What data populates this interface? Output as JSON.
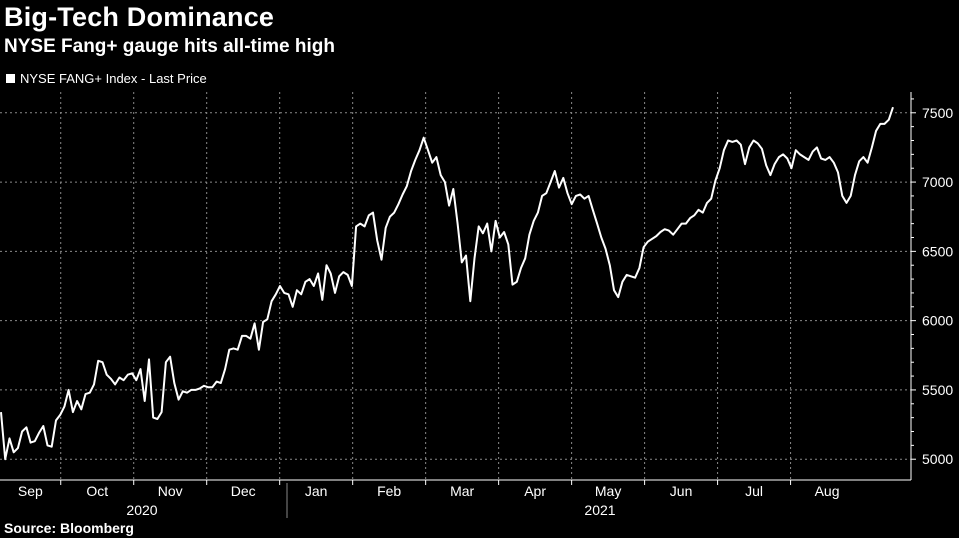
{
  "header": {
    "title": "Big-Tech Dominance",
    "subtitle": "NYSE Fang+ gauge hits all-time high"
  },
  "legend": {
    "label": "NYSE FANG+ Index - Last Price"
  },
  "footer": {
    "source": "Source: Bloomberg"
  },
  "colors": {
    "background": "#000000",
    "line": "#ffffff",
    "grid": "#8a8a8a"
  },
  "chart_data": {
    "type": "line",
    "title": "Big-Tech Dominance",
    "subtitle": "NYSE Fang+ gauge hits all-time high",
    "xlabel": "",
    "ylabel": "",
    "ylim": [
      4850,
      7650
    ],
    "y_ticks": [
      5000,
      5500,
      6000,
      6500,
      7000,
      7500
    ],
    "y_tick_labels": [
      "5000",
      "5500",
      "6000",
      "6500",
      "7000",
      "7500"
    ],
    "x_tick_labels": [
      "Sep",
      "Oct",
      "Nov",
      "Dec",
      "Jan",
      "Feb",
      "Mar",
      "Apr",
      "May",
      "Jun",
      "Jul",
      "Aug"
    ],
    "year_labels": [
      "2020",
      "2021"
    ],
    "grid": true,
    "legend_position": "top-left",
    "series": [
      {
        "name": "NYSE FANG+ Index - Last Price",
        "values": [
          5340,
          5000,
          5150,
          5050,
          5080,
          5200,
          5230,
          5120,
          5130,
          5190,
          5240,
          5100,
          5090,
          5280,
          5320,
          5380,
          5500,
          5340,
          5420,
          5360,
          5470,
          5480,
          5540,
          5710,
          5700,
          5610,
          5580,
          5540,
          5590,
          5570,
          5610,
          5620,
          5570,
          5650,
          5420,
          5720,
          5300,
          5290,
          5340,
          5700,
          5740,
          5550,
          5430,
          5490,
          5480,
          5500,
          5500,
          5510,
          5530,
          5520,
          5520,
          5560,
          5550,
          5650,
          5790,
          5800,
          5790,
          5890,
          5890,
          5870,
          5980,
          5790,
          5990,
          6010,
          6140,
          6190,
          6250,
          6200,
          6190,
          6100,
          6220,
          6190,
          6280,
          6300,
          6250,
          6340,
          6150,
          6400,
          6340,
          6200,
          6320,
          6350,
          6330,
          6250,
          6680,
          6700,
          6680,
          6760,
          6780,
          6580,
          6440,
          6670,
          6750,
          6780,
          6840,
          6910,
          6970,
          7080,
          7160,
          7230,
          7320,
          7230,
          7140,
          7180,
          7050,
          7000,
          6830,
          6950,
          6700,
          6420,
          6470,
          6140,
          6450,
          6680,
          6630,
          6700,
          6500,
          6720,
          6600,
          6640,
          6550,
          6260,
          6280,
          6380,
          6450,
          6620,
          6720,
          6780,
          6900,
          6920,
          7000,
          7080,
          6960,
          7030,
          6920,
          6840,
          6900,
          6910,
          6880,
          6900,
          6800,
          6700,
          6600,
          6520,
          6400,
          6220,
          6170,
          6280,
          6330,
          6320,
          6310,
          6380,
          6530,
          6570,
          6590,
          6610,
          6640,
          6660,
          6650,
          6620,
          6660,
          6700,
          6700,
          6740,
          6760,
          6800,
          6780,
          6850,
          6880,
          7010,
          7100,
          7230,
          7300,
          7290,
          7300,
          7270,
          7130,
          7250,
          7300,
          7280,
          7240,
          7120,
          7050,
          7130,
          7180,
          7200,
          7170,
          7100,
          7230,
          7200,
          7180,
          7160,
          7220,
          7250,
          7170,
          7160,
          7180,
          7140,
          7070,
          6900,
          6850,
          6900,
          7050,
          7150,
          7180,
          7140,
          7250,
          7370,
          7420,
          7420,
          7450,
          7540
        ]
      }
    ]
  }
}
